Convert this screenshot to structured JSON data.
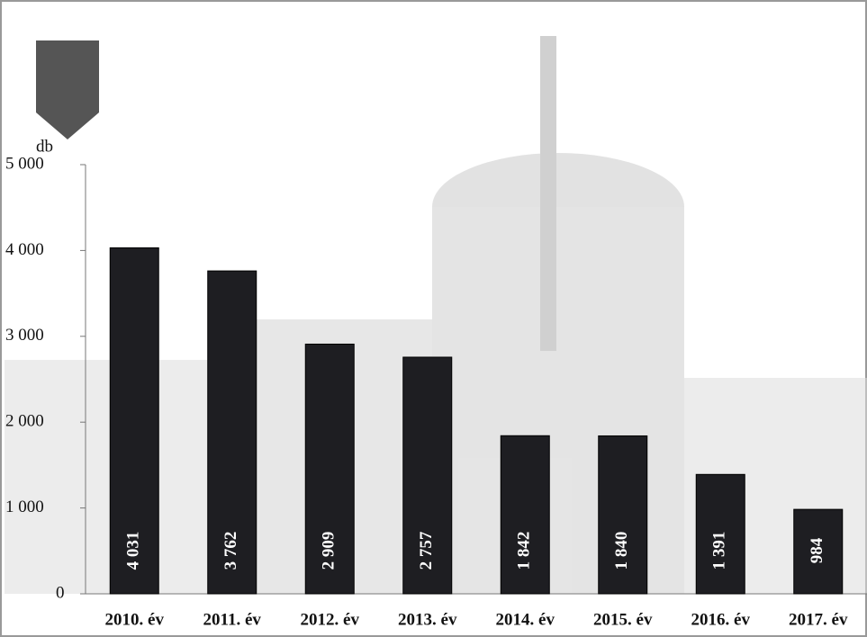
{
  "chart_data": {
    "type": "bar",
    "y_label": "db",
    "categories": [
      "2010. év",
      "2011. év",
      "2012. év",
      "2013. év",
      "2014. év",
      "2015. év",
      "2016. év",
      "2017. év"
    ],
    "values": [
      4031,
      3762,
      2909,
      2757,
      1842,
      1840,
      1391,
      984
    ],
    "value_labels": [
      "4 031",
      "3 762",
      "2 909",
      "2 757",
      "1 842",
      "1 840",
      "1 391",
      "984"
    ],
    "color": "#1e1e22",
    "ylim": [
      0,
      5000
    ],
    "yticks": [
      0,
      {
        "value": 1000,
        "label": "1 000"
      },
      {
        "value": 2000,
        "label": "2 000"
      },
      {
        "value": 3000,
        "label": "3 000"
      },
      {
        "value": 4000,
        "label": "4 000"
      },
      {
        "value": 5000,
        "label": "5 000"
      }
    ]
  }
}
